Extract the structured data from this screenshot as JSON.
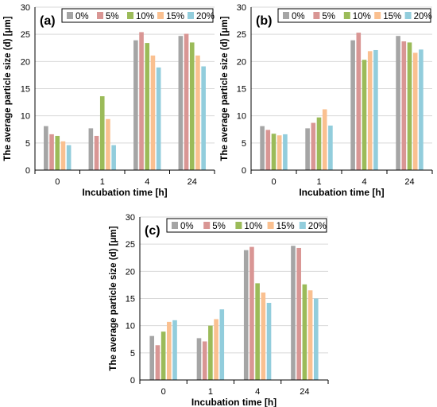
{
  "chart_data": [
    {
      "type": "bar",
      "panel_label": "(a)",
      "categories": [
        "0",
        "1",
        "4",
        "24"
      ],
      "xlabel": "Incubation time [h]",
      "ylabel": "The average particle size (d) [μm]",
      "ylim": [
        0,
        30
      ],
      "yticks": [
        "0",
        "5",
        "10",
        "15",
        "20",
        "25",
        "30"
      ],
      "legend_position": "top",
      "series": [
        {
          "name": "0%",
          "values": [
            8.1,
            7.7,
            23.9,
            24.7
          ]
        },
        {
          "name": "5%",
          "values": [
            6.6,
            6.3,
            25.4,
            25.1
          ]
        },
        {
          "name": "10%",
          "values": [
            6.3,
            13.6,
            23.4,
            23.5
          ]
        },
        {
          "name": "15%",
          "values": [
            5.3,
            9.4,
            21.1,
            21.1
          ]
        },
        {
          "name": "20%",
          "values": [
            4.6,
            4.6,
            18.9,
            19.1
          ]
        }
      ]
    },
    {
      "type": "bar",
      "panel_label": "(b)",
      "categories": [
        "0",
        "1",
        "4",
        "24"
      ],
      "xlabel": "Incubation time [h]",
      "ylabel": "The average particle size (d) [μm]",
      "ylim": [
        0,
        30
      ],
      "yticks": [
        "0",
        "5",
        "10",
        "15",
        "20",
        "25",
        "30"
      ],
      "legend_position": "top",
      "series": [
        {
          "name": "0%",
          "values": [
            8.1,
            7.7,
            23.9,
            24.7
          ]
        },
        {
          "name": "5%",
          "values": [
            7.4,
            8.7,
            25.3,
            23.7
          ]
        },
        {
          "name": "10%",
          "values": [
            6.7,
            9.7,
            20.3,
            23.5
          ]
        },
        {
          "name": "15%",
          "values": [
            6.4,
            11.2,
            21.9,
            21.6
          ]
        },
        {
          "name": "20%",
          "values": [
            6.6,
            8.2,
            22.1,
            22.2
          ]
        }
      ]
    },
    {
      "type": "bar",
      "panel_label": "(c)",
      "categories": [
        "0",
        "1",
        "4",
        "24"
      ],
      "xlabel": "Incubation time [h]",
      "ylabel": "The average particle size (d) [μm]",
      "ylim": [
        0,
        30
      ],
      "yticks": [
        "0",
        "5",
        "10",
        "15",
        "20",
        "25",
        "30"
      ],
      "legend_position": "top",
      "series": [
        {
          "name": "0%",
          "values": [
            8.1,
            7.7,
            23.9,
            24.7
          ]
        },
        {
          "name": "5%",
          "values": [
            6.4,
            7.1,
            24.5,
            24.3
          ]
        },
        {
          "name": "10%",
          "values": [
            8.9,
            10.0,
            17.8,
            17.6
          ]
        },
        {
          "name": "15%",
          "values": [
            10.7,
            11.2,
            16.1,
            16.5
          ]
        },
        {
          "name": "20%",
          "values": [
            11.0,
            13.0,
            14.2,
            15.0
          ]
        }
      ]
    }
  ],
  "colors": {
    "0%": "#a5a5a5",
    "5%": "#d99694",
    "10%": "#9bbb59",
    "15%": "#fac090",
    "20%": "#92cddc",
    "axis": "#000000",
    "gridline": "#d9d9d9"
  }
}
